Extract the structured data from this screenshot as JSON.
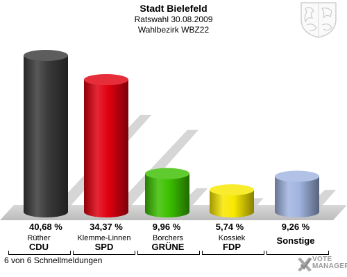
{
  "header": {
    "title": "Stadt Bielefeld",
    "subtitle1": "Ratswahl 30.08.2009",
    "subtitle2": "Wahlbezirk WBZ22"
  },
  "chart_data": {
    "type": "bar",
    "categories": [
      "CDU",
      "SPD",
      "GRÜNE",
      "FDP",
      "Sonstige"
    ],
    "candidates": [
      "Rüther",
      "Klemme-Linnen",
      "Borchers",
      "Kossiek",
      ""
    ],
    "values": [
      40.68,
      34.37,
      9.96,
      5.74,
      9.26
    ],
    "value_labels": [
      "40,68 %",
      "34,37 %",
      "9,96 %",
      "5,74 %",
      "9,26 %"
    ],
    "colors": [
      "#3a3a3a",
      "#e00010",
      "#3cc000",
      "#f8e800",
      "#a0b4e0"
    ],
    "ylim": [
      0,
      45
    ]
  },
  "footer": {
    "status": "6 von 6 Schnellmeldungen",
    "brand_line1": "VOTE",
    "brand_line2": "MANAGER"
  }
}
